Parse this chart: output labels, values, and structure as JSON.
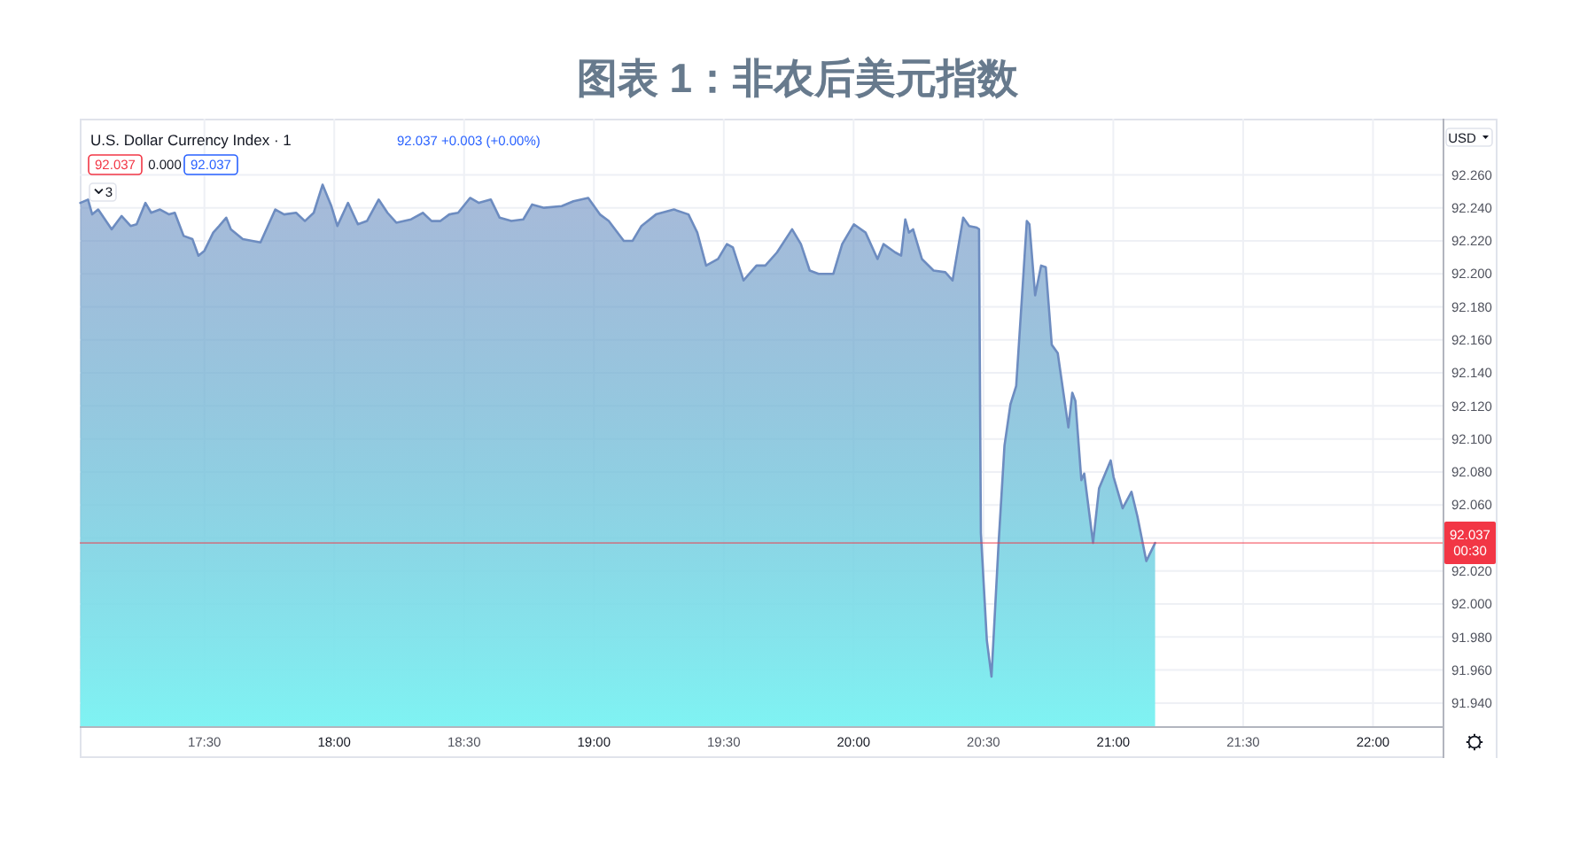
{
  "chart_data": {
    "type": "area",
    "title": "图表 1：非农后美元指数",
    "subtitle": "U.S. Dollar Currency Index · 1",
    "annotations": [
      "92.037 +0.003 (+0.00%)",
      "92.037",
      "0.000",
      "92.037",
      "3",
      "USD"
    ],
    "xlim": [
      17.02,
      22.268
    ],
    "xticks": [
      {
        "value": 17.5,
        "label": "17:30"
      },
      {
        "value": 18,
        "label": "18:00"
      },
      {
        "value": 18.5,
        "label": "18:30"
      },
      {
        "value": 19,
        "label": "19:00"
      },
      {
        "value": 19.5,
        "label": "19:30"
      },
      {
        "value": 20,
        "label": "20:00"
      },
      {
        "value": 20.5,
        "label": "20:30"
      },
      {
        "value": 21,
        "label": "21:00"
      },
      {
        "value": 21.5,
        "label": "21:30"
      },
      {
        "value": 22,
        "label": "22:00"
      }
    ],
    "ylim": [
      91.926,
      92.294
    ],
    "yticks": [
      {
        "value": 91.94,
        "label": "91.940"
      },
      {
        "value": 91.96,
        "label": "91.960"
      },
      {
        "value": 91.98,
        "label": "91.980"
      },
      {
        "value": 92.0,
        "label": "92.000"
      },
      {
        "value": 92.02,
        "label": "92.020"
      },
      {
        "value": 92.04,
        "label": null
      },
      {
        "value": 92.06,
        "label": "92.060"
      },
      {
        "value": 92.08,
        "label": "92.080"
      },
      {
        "value": 92.1,
        "label": "92.100"
      },
      {
        "value": 92.12,
        "label": "92.120"
      },
      {
        "value": 92.14,
        "label": "92.140"
      },
      {
        "value": 92.16,
        "label": "92.160"
      },
      {
        "value": 92.18,
        "label": "92.180"
      },
      {
        "value": 92.2,
        "label": "92.200"
      },
      {
        "value": 92.22,
        "label": "92.220"
      },
      {
        "value": 92.24,
        "label": "92.240"
      },
      {
        "value": 92.26,
        "label": "92.260"
      }
    ],
    "grid": true,
    "ref_lines": [
      {
        "axis": "y",
        "value": 92.037,
        "label": "92.037\n00:30",
        "color": "#f23645"
      }
    ],
    "series": [
      {
        "color": "#6d8cc0",
        "x": [
          17.022,
          17.052,
          17.068,
          17.091,
          17.143,
          17.181,
          17.216,
          17.239,
          17.273,
          17.295,
          17.329,
          17.364,
          17.386,
          17.42,
          17.454,
          17.477,
          17.5,
          17.534,
          17.557,
          17.584,
          17.602,
          17.648,
          17.716,
          17.773,
          17.807,
          17.853,
          17.887,
          17.921,
          17.955,
          17.989,
          18.012,
          18.053,
          18.091,
          18.126,
          18.171,
          18.205,
          18.239,
          18.296,
          18.341,
          18.375,
          18.409,
          18.443,
          18.477,
          18.523,
          18.557,
          18.603,
          18.637,
          18.682,
          18.728,
          18.762,
          18.808,
          18.876,
          18.921,
          18.978,
          19.023,
          19.057,
          19.115,
          19.149,
          19.183,
          19.239,
          19.308,
          19.364,
          19.398,
          19.432,
          19.478,
          19.512,
          19.535,
          19.576,
          19.626,
          19.66,
          19.705,
          19.763,
          19.797,
          19.831,
          19.865,
          19.922,
          19.956,
          20.001,
          20.046,
          20.092,
          20.115,
          20.16,
          20.183,
          20.199,
          20.213,
          20.229,
          20.263,
          20.308,
          20.353,
          20.381,
          20.422,
          20.445,
          20.474,
          20.483,
          20.49,
          20.513,
          20.531,
          20.558,
          20.581,
          20.604,
          20.626,
          20.654,
          20.667,
          20.677,
          20.699,
          20.722,
          20.74,
          20.763,
          20.786,
          20.827,
          20.842,
          20.854,
          20.877,
          20.888,
          20.922,
          20.945,
          20.99,
          21.001,
          21.036,
          21.07,
          21.093,
          21.127,
          21.161
        ],
        "values": [
          92.243,
          92.245,
          92.236,
          92.239,
          92.227,
          92.235,
          92.229,
          92.23,
          92.243,
          92.237,
          92.239,
          92.236,
          92.237,
          92.223,
          92.221,
          92.211,
          92.214,
          92.225,
          92.229,
          92.234,
          92.227,
          92.221,
          92.219,
          92.239,
          92.236,
          92.237,
          92.232,
          92.237,
          92.254,
          92.241,
          92.229,
          92.243,
          92.23,
          92.232,
          92.245,
          92.237,
          92.231,
          92.233,
          92.237,
          92.232,
          92.232,
          92.236,
          92.237,
          92.246,
          92.243,
          92.245,
          92.234,
          92.232,
          92.233,
          92.242,
          92.24,
          92.241,
          92.244,
          92.246,
          92.236,
          92.232,
          92.22,
          92.22,
          92.229,
          92.236,
          92.239,
          92.236,
          92.225,
          92.205,
          92.209,
          92.218,
          92.216,
          92.196,
          92.205,
          92.205,
          92.213,
          92.227,
          92.218,
          92.202,
          92.2,
          92.2,
          92.218,
          92.23,
          92.225,
          92.209,
          92.218,
          92.213,
          92.211,
          92.233,
          92.225,
          92.227,
          92.209,
          92.202,
          92.201,
          92.196,
          92.234,
          92.229,
          92.228,
          92.227,
          92.043,
          91.978,
          91.956,
          92.036,
          92.096,
          92.121,
          92.132,
          92.2,
          92.232,
          92.23,
          92.187,
          92.205,
          92.204,
          92.157,
          92.152,
          92.107,
          92.128,
          92.123,
          92.075,
          92.079,
          92.037,
          92.07,
          92.087,
          92.077,
          92.058,
          92.068,
          92.053,
          92.026,
          92.037
        ]
      }
    ]
  }
}
